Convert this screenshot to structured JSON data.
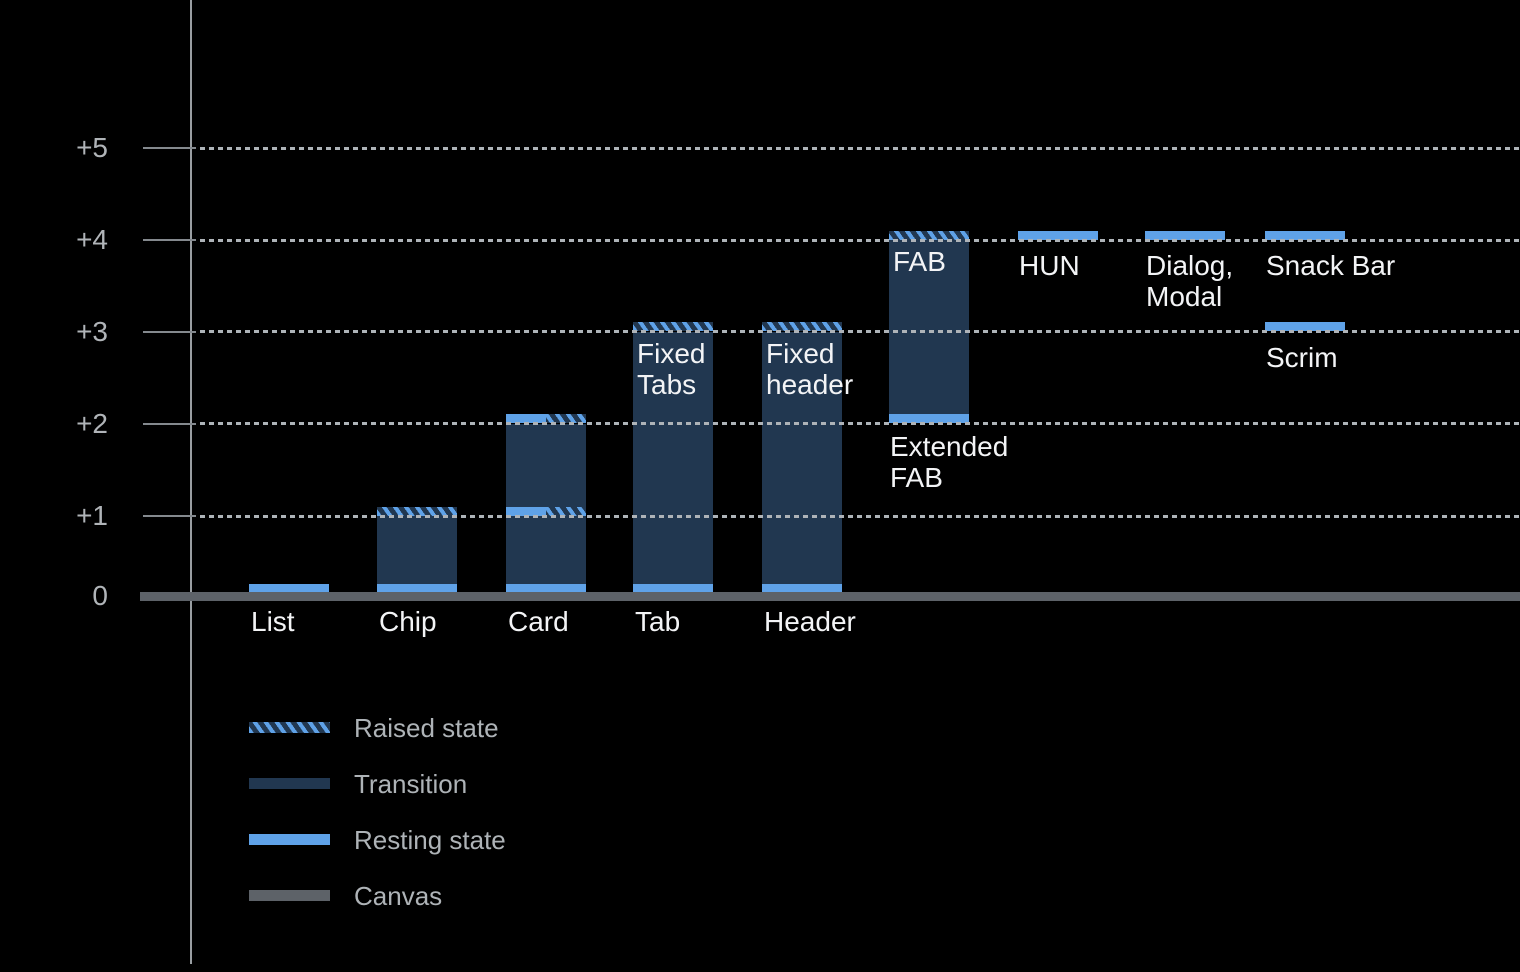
{
  "colors": {
    "background": "#000000",
    "resting_blue": "#5FA2E8",
    "transition_navy": "#213750",
    "canvas_gray": "#5D6268",
    "axis_line": "#999EA2",
    "gridline_dots": "#AEB3B8",
    "axis_label_text": "#B0B4B8",
    "category_label_text": "#F3F4F6",
    "legend_label_text": "#AEB3B7"
  },
  "chart_data": {
    "type": "bar",
    "orientation": "vertical",
    "title": "",
    "xlabel": "",
    "ylabel": "",
    "ylim": [
      0,
      5
    ],
    "grid": "horizontal-dotted",
    "legend_position": "bottom-left",
    "y_ticks": [
      {
        "label": "+5",
        "level": 5
      },
      {
        "label": "+4",
        "level": 4
      },
      {
        "label": "+3",
        "level": 3
      },
      {
        "label": "+2",
        "level": 2
      },
      {
        "label": "+1",
        "level": 1
      },
      {
        "label": "0",
        "level": 0
      }
    ],
    "legend": [
      {
        "label": "Raised state",
        "swatch": "raised"
      },
      {
        "label": "Transition",
        "swatch": "transition"
      },
      {
        "label": "Resting state",
        "swatch": "resting"
      },
      {
        "label": "Canvas",
        "swatch": "canvas"
      }
    ],
    "columns": [
      {
        "name": "list",
        "label_lines": [
          "List"
        ],
        "label_placement": "baseline",
        "segments": [
          {
            "kind": "resting",
            "from": 0,
            "to": 0.1
          }
        ]
      },
      {
        "name": "chip",
        "label_lines": [
          "Chip"
        ],
        "label_placement": "baseline",
        "segments": [
          {
            "kind": "raised",
            "from": 1.0,
            "to": 1.1
          },
          {
            "kind": "transition",
            "from": 0.1,
            "to": 1.0
          },
          {
            "kind": "resting",
            "from": 0,
            "to": 0.1
          }
        ]
      },
      {
        "name": "card",
        "label_lines": [
          "Card"
        ],
        "label_placement": "baseline",
        "segments": [
          {
            "kind": "split",
            "from": 2.0,
            "to": 2.1
          },
          {
            "kind": "transition",
            "from": 1.1,
            "to": 2.0
          },
          {
            "kind": "split",
            "from": 1.0,
            "to": 1.1
          },
          {
            "kind": "transition",
            "from": 0.1,
            "to": 1.0
          },
          {
            "kind": "resting",
            "from": 0,
            "to": 0.1
          }
        ]
      },
      {
        "name": "tab",
        "label_lines": [
          "Tab"
        ],
        "label_placement": "baseline",
        "inner_label_lines": [
          "Fixed",
          "Tabs"
        ],
        "inner_label_at": 3.0,
        "segments": [
          {
            "kind": "raised",
            "from": 3.0,
            "to": 3.1
          },
          {
            "kind": "transition",
            "from": 0.1,
            "to": 3.0
          },
          {
            "kind": "resting",
            "from": 0,
            "to": 0.1
          }
        ]
      },
      {
        "name": "header",
        "label_lines": [
          "Header"
        ],
        "label_placement": "baseline",
        "inner_label_lines": [
          "Fixed",
          "header"
        ],
        "inner_label_at": 3.0,
        "segments": [
          {
            "kind": "raised",
            "from": 3.0,
            "to": 3.1
          },
          {
            "kind": "transition",
            "from": 0.1,
            "to": 3.0
          },
          {
            "kind": "resting",
            "from": 0,
            "to": 0.1
          }
        ]
      },
      {
        "name": "fab",
        "label_lines": [
          "Extended",
          "FAB"
        ],
        "label_placement": "below-bar",
        "label_at": 2.0,
        "inner_label_lines": [
          "FAB"
        ],
        "inner_label_at": 4.0,
        "segments": [
          {
            "kind": "raised",
            "from": 4.0,
            "to": 4.1
          },
          {
            "kind": "transition",
            "from": 2.1,
            "to": 4.0
          },
          {
            "kind": "resting",
            "from": 2.0,
            "to": 2.1
          }
        ]
      },
      {
        "name": "hun",
        "label_lines": [
          "HUN"
        ],
        "label_placement": "below-level",
        "label_at": 4.0,
        "segments": [
          {
            "kind": "resting",
            "from": 4.0,
            "to": 4.1
          }
        ]
      },
      {
        "name": "dialog-modal",
        "label_lines": [
          "Dialog,",
          "Modal"
        ],
        "label_placement": "below-level",
        "label_at": 4.0,
        "segments": [
          {
            "kind": "resting",
            "from": 4.0,
            "to": 4.1
          }
        ]
      },
      {
        "name": "snack-bar",
        "label_lines": [
          "Snack Bar"
        ],
        "label_placement": "below-level",
        "label_at": 4.0,
        "segments": [
          {
            "kind": "resting",
            "from": 4.0,
            "to": 4.1
          }
        ]
      },
      {
        "name": "scrim",
        "label_lines": [
          "Scrim"
        ],
        "label_placement": "below-level",
        "label_at": 3.0,
        "segments": [
          {
            "kind": "resting",
            "from": 3.0,
            "to": 3.1
          }
        ]
      }
    ]
  }
}
